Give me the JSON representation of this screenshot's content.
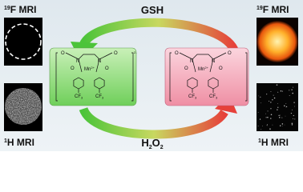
{
  "panels": {
    "left": {
      "top_label": {
        "sup": "19",
        "text": "F MRI"
      },
      "bottom_label": {
        "sup": "1",
        "text": "H MRI"
      }
    },
    "right": {
      "top_label": {
        "sup": "19",
        "text": "F MRI"
      },
      "bottom_label": {
        "sup": "1",
        "text": "H MRI"
      }
    }
  },
  "arrows": {
    "top": "GSH",
    "bottom": {
      "a": "H",
      "a_sub": "2",
      "b": "O",
      "b_sub": "2"
    }
  },
  "complexes": {
    "left": {
      "metal": "Mn",
      "metal_charge": "2+",
      "charge": "2-",
      "nitrogen": "N",
      "oxygen": "O",
      "group": "CF",
      "group_sub": "3"
    },
    "right": {
      "metal": "Mn",
      "metal_charge": "2+",
      "nitrogen": "N",
      "oxygen": "O",
      "group": "CF",
      "group_sub": "3"
    }
  }
}
